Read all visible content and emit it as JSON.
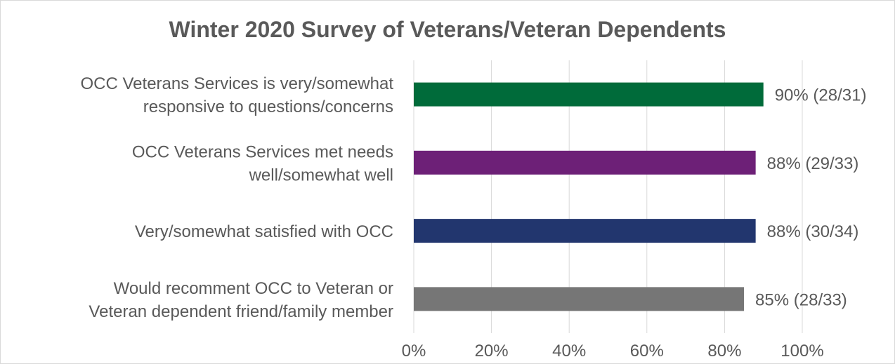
{
  "chart_data": {
    "type": "bar",
    "orientation": "horizontal",
    "title": "Winter 2020 Survey of Veterans/Veteran Dependents",
    "categories": [
      [
        "OCC Veterans Services is very/somewhat",
        "responsive to questions/concerns"
      ],
      [
        "OCC Veterans Services met needs",
        "well/somewhat well"
      ],
      [
        "Very/somewhat satisfied with OCC"
      ],
      [
        "Would recomment OCC to Veteran or",
        "Veteran dependent friend/family member"
      ]
    ],
    "values": [
      90,
      88,
      88,
      85
    ],
    "data_labels": [
      "90% (28/31)",
      "88% (29/33)",
      "88% (30/34)",
      "85% (28/33)"
    ],
    "bar_colors": [
      "#006B3A",
      "#6D2077",
      "#22366E",
      "#767676"
    ],
    "xlim": [
      0,
      100
    ],
    "xticks": [
      0,
      20,
      40,
      60,
      80,
      100
    ],
    "xtick_labels": [
      "0%",
      "20%",
      "40%",
      "60%",
      "80%",
      "100%"
    ],
    "grid": "vertical",
    "legend": "none"
  }
}
